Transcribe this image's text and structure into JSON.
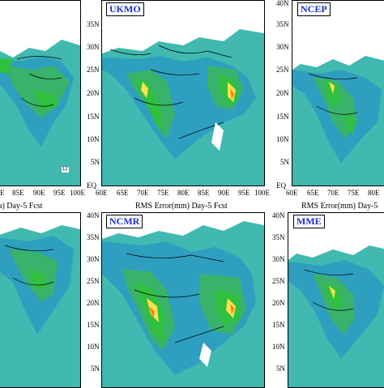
{
  "panels": {
    "ukmo": {
      "label": "UKMO"
    },
    "ncep": {
      "label": "NCEP"
    },
    "ncmr": {
      "label": "NCMR"
    },
    "mme": {
      "label": "MME"
    }
  },
  "lat_ticks": [
    "40N",
    "35N",
    "30N",
    "25N",
    "20N",
    "15N",
    "10N",
    "5N",
    "EQ"
  ],
  "lon_ticks": [
    "60E",
    "65E",
    "70E",
    "75E",
    "80E",
    "85E",
    "90E",
    "95E",
    "100E"
  ],
  "left_x_ticks": [
    "E",
    "85E",
    "90E",
    "95E",
    "100E"
  ],
  "ncep_x_ticks": [
    "60E",
    "65E",
    "70E",
    "75E",
    "80E"
  ],
  "captions": {
    "left": "a) Day-5 Fcst",
    "middle": "RMS Error(mm) Day-5 Fcst",
    "right": "RMS Error(mm) Day-5"
  },
  "colors": {
    "sea_light": "#41b8b0",
    "land_low": "#2e9fbf",
    "mid": "#39b36a",
    "green": "#2fc040",
    "high": "#ffe04a",
    "peak": "#ff7a1a",
    "max": "#e02020",
    "white": "#ffffff"
  }
}
